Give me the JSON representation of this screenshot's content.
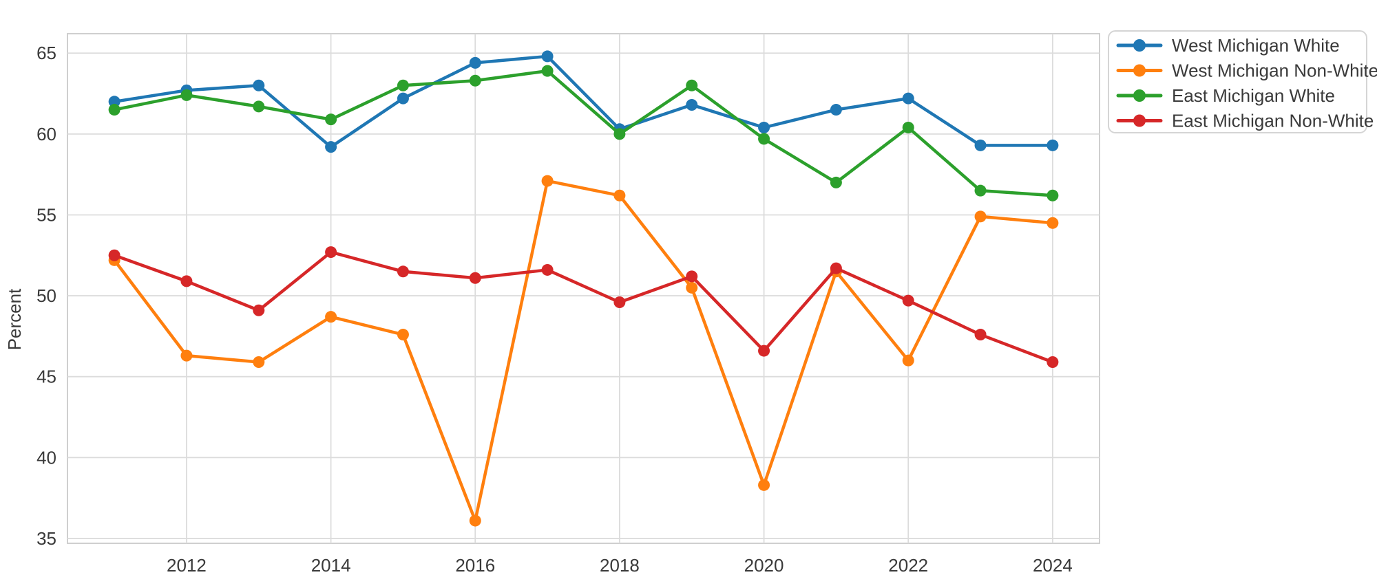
{
  "figure": {
    "background": "#ffffff",
    "plot_background": "#ffffff",
    "spine_color": "#cfcfcf",
    "grid_color": "#dcdcdc",
    "tick_label_color": "#3a3a3a",
    "legend_text_color": "#3a3a3a",
    "legend_border_color": "#d5d5d5"
  },
  "chart_data": {
    "type": "line",
    "title": "",
    "xlabel": "",
    "ylabel": "Percent",
    "x": [
      2011,
      2012,
      2013,
      2014,
      2015,
      2016,
      2017,
      2018,
      2019,
      2020,
      2021,
      2022,
      2023,
      2024
    ],
    "series": [
      {
        "name": "West Michigan White",
        "color": "#1f77b4",
        "values": [
          62.0,
          62.7,
          63.0,
          59.2,
          62.2,
          64.4,
          64.8,
          60.3,
          61.8,
          60.4,
          61.5,
          62.2,
          59.3,
          59.3
        ]
      },
      {
        "name": "West Michigan Non-White",
        "color": "#ff7f0e",
        "values": [
          52.2,
          46.3,
          45.9,
          48.7,
          47.6,
          36.1,
          57.1,
          56.2,
          50.5,
          38.3,
          51.5,
          46.0,
          54.9,
          54.5
        ]
      },
      {
        "name": "East Michigan White",
        "color": "#2ca02c",
        "values": [
          61.5,
          62.4,
          61.7,
          60.9,
          63.0,
          63.3,
          63.9,
          60.0,
          63.0,
          59.7,
          57.0,
          60.4,
          56.5,
          56.2
        ]
      },
      {
        "name": "East Michigan Non-White",
        "color": "#d62728",
        "values": [
          52.5,
          50.9,
          49.1,
          52.7,
          51.5,
          51.1,
          51.6,
          49.6,
          51.2,
          46.6,
          51.7,
          49.7,
          47.6,
          45.9
        ]
      }
    ],
    "xticks": [
      2012,
      2014,
      2016,
      2018,
      2020,
      2022,
      2024
    ],
    "yticks": [
      35,
      40,
      45,
      50,
      55,
      60,
      65
    ],
    "xlim": [
      2010.35,
      2024.65
    ],
    "ylim": [
      34.7,
      66.2
    ],
    "grid": true,
    "legend_position": "outside-top-right"
  }
}
